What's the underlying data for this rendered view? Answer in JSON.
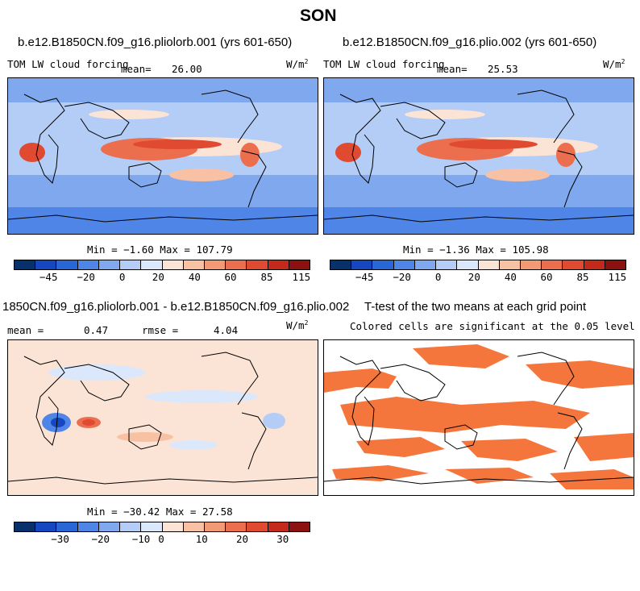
{
  "figure": {
    "title": "SON"
  },
  "colors": {
    "scale": [
      "#08306b",
      "#1547c0",
      "#2a67d6",
      "#4f85e6",
      "#80a8ee",
      "#b3cdf6",
      "#dbe8fb",
      "#fbe4d6",
      "#f8c1a4",
      "#f29a74",
      "#eb6f4e",
      "#e04a30",
      "#c32a1b",
      "#8c1111"
    ],
    "diff_scale": [
      "#08306b",
      "#1547c0",
      "#2a67d6",
      "#4f85e6",
      "#80a8ee",
      "#b3cdf6",
      "#dbe8fb",
      "#fbe4d6",
      "#f8c1a4",
      "#f29a74",
      "#eb6f4e",
      "#e04a30",
      "#c32a1b",
      "#8c1111"
    ],
    "signif": "#f5763d",
    "coast": "#000000"
  },
  "panels": {
    "p1": {
      "title": "b.e12.B1850CN.f09_g16.pliolorb.001 (yrs 601-650)",
      "left": "TOM LW cloud forcing",
      "mean_label": "mean=",
      "mean_value": "26.00",
      "units": "W/m",
      "units_exp": "2",
      "stats": "Min =  −1.60 Max = 107.79",
      "ticks": [
        "−45",
        "−20",
        "0",
        "20",
        "40",
        "60",
        "85",
        "115"
      ]
    },
    "p2": {
      "title": "b.e12.B1850CN.f09_g16.plio.002 (yrs 601-650)",
      "left": "TOM LW cloud forcing",
      "mean_label": "mean=",
      "mean_value": "25.53",
      "units": "W/m",
      "units_exp": "2",
      "stats": "Min =  −1.36 Max = 105.98",
      "ticks": [
        "−45",
        "−20",
        "0",
        "20",
        "40",
        "60",
        "85",
        "115"
      ]
    },
    "p3": {
      "title": "1850CN.f09_g16.pliolorb.001 - b.e12.B1850CN.f09_g16.plio.002",
      "mean_label": "mean =",
      "mean_value": "0.47",
      "rmse_label": "rmse =",
      "rmse_value": "4.04",
      "units": "W/m",
      "units_exp": "2",
      "stats": "Min = −30.42 Max =  27.58",
      "ticks": [
        "−30",
        "−20",
        "−10",
        "0",
        "10",
        "20",
        "30"
      ]
    },
    "p4": {
      "title": "T-test of the two means at each grid point",
      "subtitle": "Colored cells are significant at the 0.05 level"
    }
  }
}
